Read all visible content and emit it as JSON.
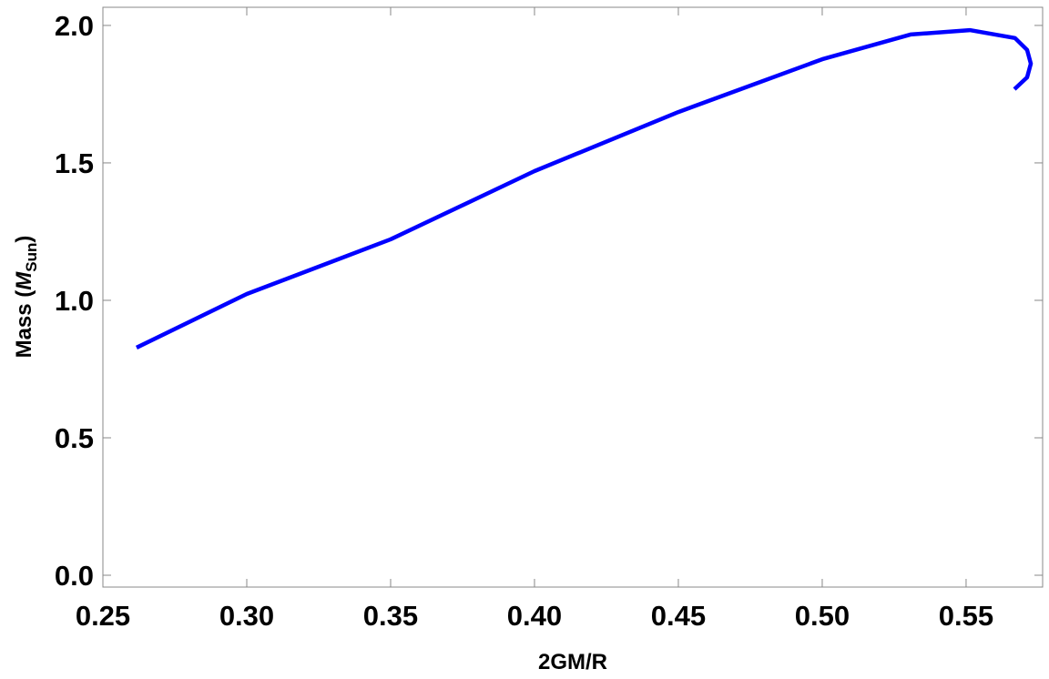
{
  "chart_data": {
    "type": "line",
    "xlabel": "2GM/R",
    "ylabel": {
      "main": "Mass (",
      "symbol": "M",
      "sub": "Sun",
      "end": ")"
    },
    "series": [
      {
        "color": "#0000ff",
        "x": [
          0.2617,
          0.3,
          0.35,
          0.4,
          0.45,
          0.5,
          0.5307,
          0.5513,
          0.567,
          0.5712,
          0.5725,
          0.5712,
          0.5668
        ],
        "values": [
          0.828,
          1.023,
          1.222,
          1.47,
          1.685,
          1.877,
          1.967,
          1.983,
          1.954,
          1.911,
          1.861,
          1.811,
          1.768
        ]
      }
    ],
    "xlim": [
      0.25,
      0.5766
    ],
    "ylim": [
      -0.043,
      2.066
    ],
    "xticks": [
      {
        "value": 0.25,
        "label": "0.25"
      },
      {
        "value": 0.3,
        "label": "0.30"
      },
      {
        "value": 0.35,
        "label": "0.35"
      },
      {
        "value": 0.4,
        "label": "0.40"
      },
      {
        "value": 0.45,
        "label": "0.45"
      },
      {
        "value": 0.5,
        "label": "0.50"
      },
      {
        "value": 0.55,
        "label": "0.55"
      }
    ],
    "yticks": [
      {
        "value": 0,
        "label": "0.0"
      },
      0.5,
      {
        "value": 1,
        "label": "1.0"
      },
      1.5,
      {
        "value": 2,
        "label": "2.0"
      }
    ]
  }
}
